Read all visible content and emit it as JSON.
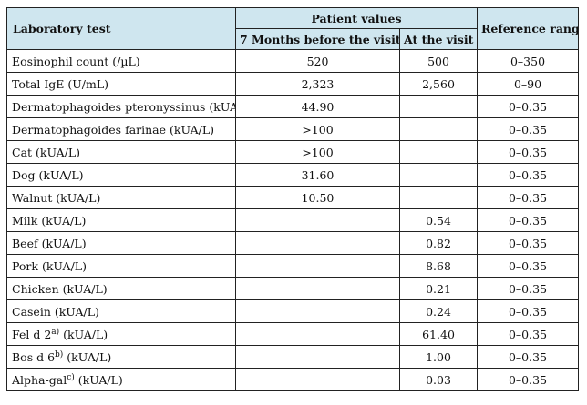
{
  "headers": {
    "lab_test": "Laboratory test",
    "patient_values": "Patient values",
    "before": "7 Months before the visit",
    "at_visit": "At the visit",
    "reference": "Reference range"
  },
  "rows": [
    {
      "name": "Eosinophil count (/µL)",
      "sup": "",
      "unit": "",
      "before": "520",
      "at": "500",
      "ref": "0–350"
    },
    {
      "name": "Total IgE (U/mL)",
      "sup": "",
      "unit": "",
      "before": "2,323",
      "at": "2,560",
      "ref": "0–90"
    },
    {
      "name": "Dermatophagoides pteronyssinus (kUA/L)",
      "sup": "",
      "unit": "",
      "before": "44.90",
      "at": "",
      "ref": "0–0.35"
    },
    {
      "name": "Dermatophagoides farinae (kUA/L)",
      "sup": "",
      "unit": "",
      "before": ">100",
      "at": "",
      "ref": "0–0.35"
    },
    {
      "name": "Cat (kUA/L)",
      "sup": "",
      "unit": "",
      "before": ">100",
      "at": "",
      "ref": "0–0.35"
    },
    {
      "name": "Dog (kUA/L)",
      "sup": "",
      "unit": "",
      "before": "31.60",
      "at": "",
      "ref": "0–0.35"
    },
    {
      "name": "Walnut (kUA/L)",
      "sup": "",
      "unit": "",
      "before": "10.50",
      "at": "",
      "ref": "0–0.35"
    },
    {
      "name": "Milk (kUA/L)",
      "sup": "",
      "unit": "",
      "before": "",
      "at": "0.54",
      "ref": "0–0.35"
    },
    {
      "name": "Beef (kUA/L)",
      "sup": "",
      "unit": "",
      "before": "",
      "at": "0.82",
      "ref": "0–0.35"
    },
    {
      "name": "Pork (kUA/L)",
      "sup": "",
      "unit": "",
      "before": "",
      "at": "8.68",
      "ref": "0–0.35"
    },
    {
      "name": "Chicken (kUA/L)",
      "sup": "",
      "unit": "",
      "before": "",
      "at": "0.21",
      "ref": "0–0.35"
    },
    {
      "name": "Casein (kUA/L)",
      "sup": "",
      "unit": "",
      "before": "",
      "at": "0.24",
      "ref": "0–0.35"
    },
    {
      "name": "Fel d 2",
      "sup": "a)",
      "unit": " (kUA/L)",
      "before": "",
      "at": "61.40",
      "ref": "0–0.35"
    },
    {
      "name": "Bos d 6",
      "sup": "b)",
      "unit": " (kUA/L)",
      "before": "",
      "at": "1.00",
      "ref": "0–0.35"
    },
    {
      "name": "Alpha-gal",
      "sup": "c)",
      "unit": " (kUA/L)",
      "before": "",
      "at": "0.03",
      "ref": "0–0.35"
    }
  ]
}
